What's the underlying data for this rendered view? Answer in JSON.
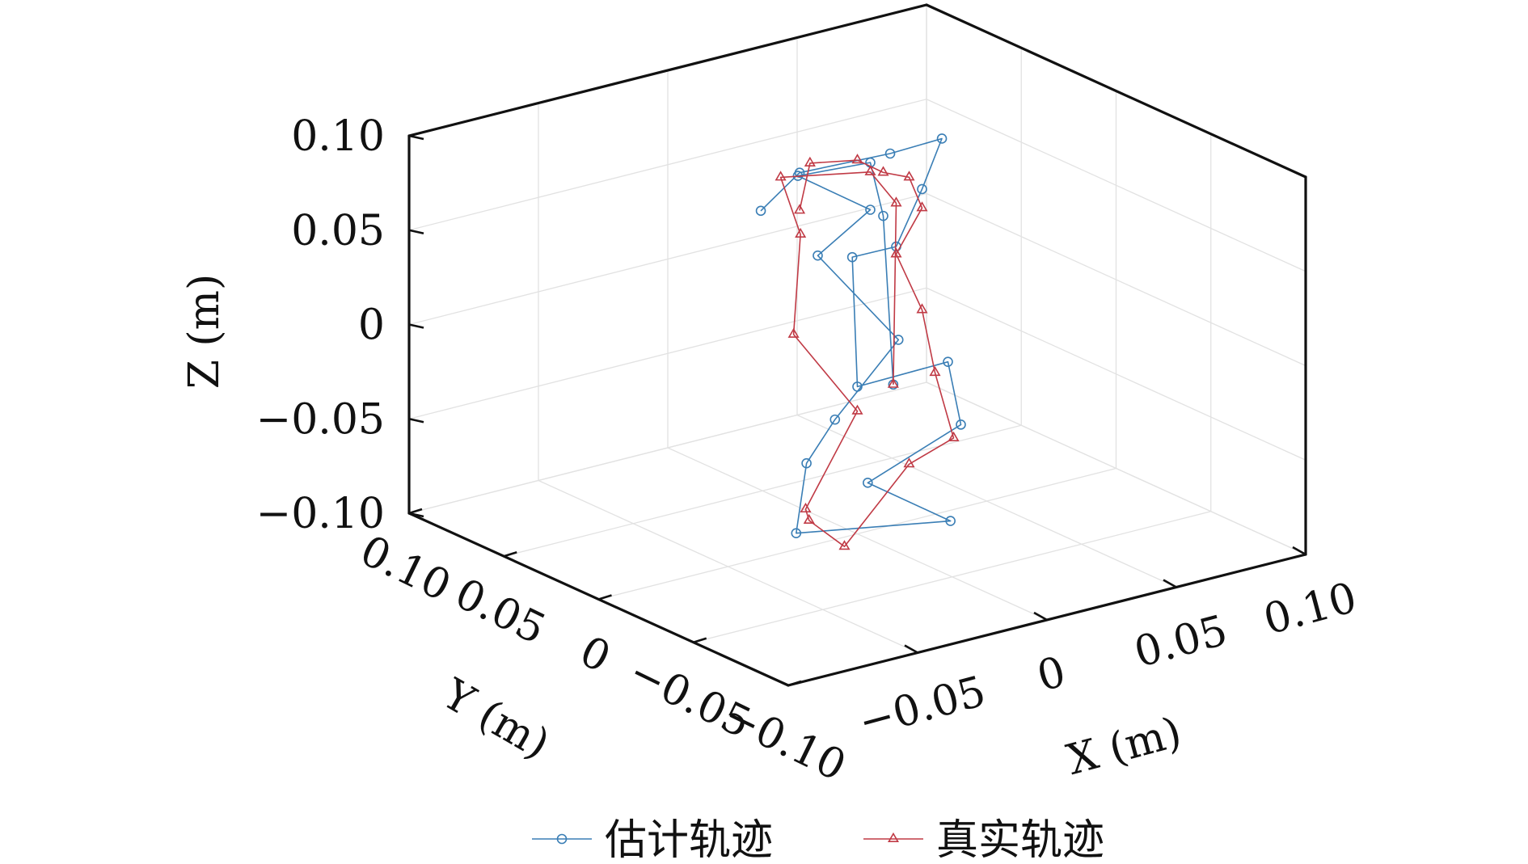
{
  "chart_data": {
    "type": "line3d",
    "title": "",
    "xlabel": "X (m)",
    "ylabel": "Y (m)",
    "zlabel": "Z (m)",
    "xlim": [
      -0.1,
      0.1
    ],
    "ylim": [
      -0.1,
      0.1
    ],
    "zlim": [
      -0.1,
      0.1
    ],
    "x_ticks": [
      {
        "value": -0.05,
        "label": "−0.05"
      },
      {
        "value": 0,
        "label": "0"
      },
      {
        "value": 0.05,
        "label": "0.05"
      },
      {
        "value": 0.1,
        "label": "0.10"
      }
    ],
    "y_ticks": [
      {
        "value": 0.1,
        "label": "0.10"
      },
      {
        "value": 0.05,
        "label": "0.05"
      },
      {
        "value": 0,
        "label": "0"
      },
      {
        "value": -0.05,
        "label": "−0.05"
      },
      {
        "value": -0.1,
        "label": "−0.10"
      }
    ],
    "z_ticks": [
      {
        "value": 0.1,
        "label": "0.10"
      },
      {
        "value": 0.05,
        "label": "0.05"
      },
      {
        "value": 0,
        "label": "0"
      },
      {
        "value": -0.05,
        "label": "−0.05"
      },
      {
        "value": -0.1,
        "label": "−0.10"
      }
    ],
    "grid": true,
    "legend_position": "bottom",
    "series": [
      {
        "name": "估计轨迹",
        "color": "#3a7eb5",
        "marker": "circle",
        "points": [
          [
            -0.03,
            0.01,
            0.077
          ],
          [
            -0.015,
            0.01,
            0.092
          ],
          [
            0.02,
            0.01,
            0.09
          ],
          [
            0.04,
            0.01,
            0.091
          ],
          [
            0.025,
            0.0,
            0.074
          ],
          [
            0.015,
            0.0,
            0.047
          ],
          [
            0.02,
            0.03,
            0.026
          ],
          [
            0.0,
            0.0,
            -0.022
          ],
          [
            0.035,
            0.0,
            -0.021
          ],
          [
            0.04,
            0.0,
            -0.056
          ],
          [
            0.015,
            0.015,
            -0.085
          ],
          [
            0.025,
            -0.015,
            -0.095
          ],
          [
            -0.02,
            0.005,
            -0.095
          ],
          [
            -0.005,
            0.02,
            -0.07
          ],
          [
            -0.005,
            0.005,
            -0.04
          ],
          [
            0.01,
            -0.008,
            0.003
          ],
          [
            0.003,
            0.025,
            0.035
          ],
          [
            0.005,
            0.0,
            0.07
          ],
          [
            -0.012,
            0.015,
            0.087
          ],
          [
            0.005,
            0.0,
            0.095
          ],
          [
            0.01,
            0.0,
            0.065
          ],
          [
            0.008,
            -0.008,
            -0.02
          ]
        ]
      },
      {
        "name": "真实轨迹",
        "color": "#c03a45",
        "marker": "triangle",
        "points": [
          [
            -0.015,
            0.01,
            0.072
          ],
          [
            0.0,
            0.025,
            0.085
          ],
          [
            0.0,
            0.0,
            0.098
          ],
          [
            0.01,
            0.0,
            0.088
          ],
          [
            0.02,
            0.0,
            0.082
          ],
          [
            0.025,
            0.0,
            0.064
          ],
          [
            0.015,
            0.0,
            0.043
          ],
          [
            0.025,
            0.0,
            0.01
          ],
          [
            0.03,
            0.0,
            -0.025
          ],
          [
            0.035,
            -0.003,
            -0.06
          ],
          [
            0.02,
            0.0,
            -0.07
          ],
          [
            -0.005,
            0.0,
            -0.105
          ],
          [
            -0.015,
            0.005,
            -0.09
          ],
          [
            -0.02,
            0.0,
            -0.08
          ],
          [
            0.0,
            0.0,
            -0.035
          ],
          [
            -0.01,
            0.02,
            0.0
          ],
          [
            0.0,
            0.03,
            0.045
          ],
          [
            -0.015,
            0.02,
            0.085
          ],
          [
            0.005,
            0.0,
            0.09
          ],
          [
            0.015,
            0.0,
            0.07
          ],
          [
            0.008,
            -0.008,
            -0.02
          ]
        ]
      }
    ]
  }
}
